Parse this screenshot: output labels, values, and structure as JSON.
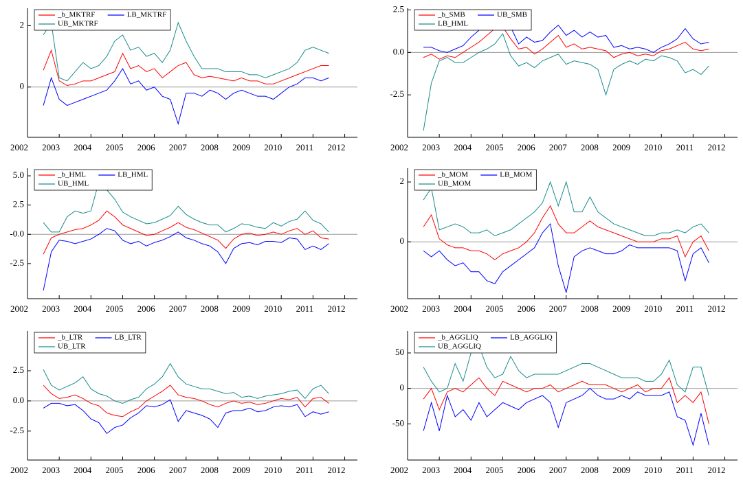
{
  "chart_data": [
    {
      "type": "line",
      "legend": "upper left",
      "xlim": [
        2002,
        2012.4
      ],
      "ylim": [
        -1.64,
        2.57
      ],
      "xticks": [
        2002,
        2003,
        2004,
        2005,
        2006,
        2007,
        2008,
        2009,
        2010,
        2011,
        2012
      ],
      "yticks": [
        0,
        2
      ],
      "x": [
        2002.5,
        2002.75,
        2003,
        2003.25,
        2003.5,
        2003.75,
        2004,
        2004.25,
        2004.5,
        2004.75,
        2005,
        2005.25,
        2005.5,
        2005.75,
        2006,
        2006.25,
        2006.5,
        2006.75,
        2007,
        2007.25,
        2007.5,
        2007.75,
        2008,
        2008.25,
        2008.5,
        2008.75,
        2009,
        2009.25,
        2009.5,
        2009.75,
        2010,
        2010.25,
        2010.5,
        2010.75,
        2011,
        2011.25,
        2011.5
      ],
      "series": [
        {
          "name": "_b_MKTRF",
          "color": "#ff0000",
          "values": [
            0.55,
            1.2,
            0.2,
            0.05,
            0.1,
            0.2,
            0.2,
            0.3,
            0.4,
            0.5,
            1.1,
            0.6,
            0.7,
            0.5,
            0.6,
            0.3,
            0.5,
            0.7,
            0.8,
            0.4,
            0.3,
            0.35,
            0.3,
            0.25,
            0.2,
            0.3,
            0.2,
            0.2,
            0.1,
            0.1,
            0.2,
            0.3,
            0.4,
            0.5,
            0.6,
            0.7,
            0.7
          ]
        },
        {
          "name": "LB_MKTRF",
          "color": "#0000ff",
          "values": [
            -0.6,
            0.3,
            -0.4,
            -0.6,
            -0.5,
            -0.4,
            -0.3,
            -0.2,
            -0.1,
            0.2,
            0.6,
            0.1,
            0.2,
            -0.1,
            0,
            -0.3,
            -0.4,
            -1.2,
            -0.2,
            -0.2,
            -0.3,
            -0.1,
            -0.2,
            -0.4,
            -0.2,
            -0.1,
            -0.2,
            -0.3,
            -0.3,
            -0.4,
            -0.2,
            0,
            0.1,
            0.3,
            0.3,
            0.2,
            0.3
          ]
        },
        {
          "name": "UB_MKTRF",
          "color": "#1a8c8c",
          "values": [
            1.7,
            2.1,
            0.3,
            0.2,
            0.5,
            0.8,
            0.6,
            0.7,
            1.0,
            1.5,
            1.7,
            1.2,
            1.3,
            1.0,
            1.1,
            0.8,
            1.2,
            2.1,
            1.5,
            1.0,
            0.6,
            0.6,
            0.6,
            0.5,
            0.5,
            0.5,
            0.4,
            0.4,
            0.3,
            0.4,
            0.5,
            0.6,
            0.8,
            1.2,
            1.3,
            1.2,
            1.1
          ]
        }
      ]
    },
    {
      "type": "line",
      "legend": "upper left",
      "xlim": [
        2002,
        2012.4
      ],
      "ylim": [
        -5,
        2.6
      ],
      "xticks": [
        2002,
        2003,
        2004,
        2005,
        2006,
        2007,
        2008,
        2009,
        2010,
        2011,
        2012
      ],
      "yticks": [
        -2.5,
        {
          "value": 0,
          "label": "0.0"
        },
        2.5
      ],
      "x": [
        2002.5,
        2002.75,
        2003,
        2003.25,
        2003.5,
        2003.75,
        2004,
        2004.25,
        2004.5,
        2004.75,
        2005,
        2005.25,
        2005.5,
        2005.75,
        2006,
        2006.25,
        2006.5,
        2006.75,
        2007,
        2007.25,
        2007.5,
        2007.75,
        2008,
        2008.25,
        2008.5,
        2008.75,
        2009,
        2009.25,
        2009.5,
        2009.75,
        2010,
        2010.25,
        2010.5,
        2010.75,
        2011,
        2011.25,
        2011.5
      ],
      "series": [
        {
          "name": "_b_SMB",
          "color": "#ff0000",
          "values": [
            -0.3,
            -0.1,
            -0.4,
            -0.2,
            -0.3,
            0,
            0.3,
            0.6,
            1.0,
            1.4,
            1.5,
            0.8,
            0.2,
            0.3,
            -0.1,
            0.2,
            0.6,
            1.0,
            0.3,
            0.5,
            0.2,
            0.3,
            0.2,
            0.1,
            -0.3,
            -0.1,
            0,
            -0.2,
            -0.1,
            -0.2,
            0.1,
            0.2,
            0.4,
            0.6,
            0.2,
            0.1,
            0.2
          ]
        },
        {
          "name": "UB_SMB",
          "color": "#0000ff",
          "values": [
            0.3,
            0.3,
            0.1,
            0,
            0.2,
            0.4,
            0.9,
            1.3,
            2.0,
            2.0,
            1.8,
            1.5,
            0.5,
            0.9,
            0.6,
            0.7,
            1.2,
            1.6,
            1.0,
            1.3,
            0.9,
            1.2,
            0.9,
            1.0,
            0.3,
            0.4,
            0.2,
            0.3,
            0.2,
            0,
            0.3,
            0.5,
            0.8,
            1.4,
            0.8,
            0.5,
            0.6
          ]
        },
        {
          "name": "LB_HML",
          "color": "#1a8c8c",
          "values": [
            -4.6,
            -1.8,
            -0.5,
            -0.3,
            -0.6,
            -0.6,
            -0.3,
            0,
            0.2,
            0.5,
            1.1,
            -0.2,
            -0.8,
            -0.6,
            -0.9,
            -0.5,
            -0.3,
            -0.1,
            -0.7,
            -0.5,
            -0.6,
            -0.7,
            -1.0,
            -2.5,
            -1.0,
            -0.7,
            -0.5,
            -0.7,
            -0.4,
            -0.5,
            -0.2,
            -0.3,
            -0.5,
            -1.2,
            -1.0,
            -1.3,
            -0.8
          ]
        }
      ]
    },
    {
      "type": "line",
      "legend": "upper left",
      "xlim": [
        2002,
        2012.4
      ],
      "ylim": [
        -5.5,
        5.65
      ],
      "xticks": [
        2002,
        2003,
        2004,
        2005,
        2006,
        2007,
        2008,
        2009,
        2010,
        2011,
        2012
      ],
      "yticks": [
        -2.5,
        {
          "value": 0,
          "label": "-0.0"
        },
        2.5,
        {
          "value": 5,
          "label": "5.0"
        }
      ],
      "x": [
        2002.5,
        2002.75,
        2003,
        2003.25,
        2003.5,
        2003.75,
        2004,
        2004.25,
        2004.5,
        2004.75,
        2005,
        2005.25,
        2005.5,
        2005.75,
        2006,
        2006.25,
        2006.5,
        2006.75,
        2007,
        2007.25,
        2007.5,
        2007.75,
        2008,
        2008.25,
        2008.5,
        2008.75,
        2009,
        2009.25,
        2009.5,
        2009.75,
        2010,
        2010.25,
        2010.5,
        2010.75,
        2011,
        2011.25,
        2011.5
      ],
      "series": [
        {
          "name": "_b_HML",
          "color": "#ff0000",
          "values": [
            -1.7,
            -0.3,
            0,
            0.2,
            0.4,
            0.5,
            0.8,
            1.2,
            2.0,
            1.5,
            0.8,
            0.5,
            0.2,
            -0.1,
            0,
            0.3,
            0.6,
            1.0,
            0.6,
            0.4,
            0.1,
            -0.2,
            -0.5,
            -1.2,
            -0.4,
            0,
            0.1,
            -0.1,
            0,
            0.2,
            0,
            0.3,
            0.5,
            0,
            0.3,
            -0.3,
            -0.4
          ]
        },
        {
          "name": "LB_HML",
          "color": "#0000ff",
          "values": [
            -4.8,
            -1.5,
            -0.5,
            -0.6,
            -0.8,
            -0.6,
            -0.4,
            0,
            0.5,
            0.3,
            -0.5,
            -0.8,
            -0.6,
            -1.0,
            -0.7,
            -0.5,
            -0.2,
            0.2,
            -0.3,
            -0.5,
            -0.8,
            -1.0,
            -1.5,
            -2.5,
            -1.2,
            -0.8,
            -0.7,
            -0.9,
            -0.6,
            -0.6,
            -0.7,
            -0.3,
            -0.4,
            -1.3,
            -1.0,
            -1.3,
            -0.8
          ]
        },
        {
          "name": "UB_HML",
          "color": "#1a8c8c",
          "values": [
            1.0,
            0.2,
            0.2,
            1.5,
            2.0,
            1.8,
            2.0,
            4.5,
            3.8,
            3.0,
            1.9,
            1.5,
            1.2,
            0.9,
            1.0,
            1.3,
            1.6,
            2.4,
            1.7,
            1.3,
            1.0,
            0.8,
            0.8,
            0.2,
            0.5,
            0.9,
            0.8,
            0.6,
            0.5,
            1.0,
            0.7,
            1.1,
            1.3,
            2.0,
            1.2,
            0.9,
            0.2
          ]
        }
      ]
    },
    {
      "type": "line",
      "legend": "upper left",
      "xlim": [
        2002,
        2012.4
      ],
      "ylim": [
        -1.9,
        2.46
      ],
      "xticks": [
        2002,
        2003,
        2004,
        2005,
        2006,
        2007,
        2008,
        2009,
        2010,
        2011,
        2012
      ],
      "yticks": [
        0,
        2
      ],
      "x": [
        2002.5,
        2002.75,
        2003,
        2003.25,
        2003.5,
        2003.75,
        2004,
        2004.25,
        2004.5,
        2004.75,
        2005,
        2005.25,
        2005.5,
        2005.75,
        2006,
        2006.25,
        2006.5,
        2006.75,
        2007,
        2007.25,
        2007.5,
        2007.75,
        2008,
        2008.25,
        2008.5,
        2008.75,
        2009,
        2009.25,
        2009.5,
        2009.75,
        2010,
        2010.25,
        2010.5,
        2010.75,
        2011,
        2011.25,
        2011.5
      ],
      "series": [
        {
          "name": "_b_MOM",
          "color": "#ff0000",
          "values": [
            0.5,
            0.9,
            0.1,
            -0.1,
            -0.2,
            -0.2,
            -0.3,
            -0.3,
            -0.4,
            -0.6,
            -0.4,
            -0.3,
            -0.2,
            0,
            0.3,
            0.8,
            1.2,
            0.6,
            0.3,
            0.3,
            0.5,
            0.7,
            0.5,
            0.4,
            0.3,
            0.2,
            0.1,
            0,
            0,
            0,
            0.1,
            0.1,
            0.2,
            -0.5,
            0,
            0.2,
            -0.3
          ]
        },
        {
          "name": "LB_MOM",
          "color": "#0000ff",
          "values": [
            -0.3,
            -0.5,
            -0.3,
            -0.6,
            -0.8,
            -0.7,
            -1.0,
            -1.0,
            -1.3,
            -1.4,
            -1.0,
            -0.8,
            -0.6,
            -0.4,
            -0.2,
            0.3,
            0.6,
            -0.8,
            -1.7,
            -0.5,
            -0.3,
            -0.2,
            -0.3,
            -0.4,
            -0.4,
            -0.3,
            -0.1,
            -0.2,
            -0.2,
            -0.2,
            -0.2,
            -0.2,
            -0.3,
            -1.3,
            -0.4,
            -0.2,
            -0.7
          ]
        },
        {
          "name": "UB_MOM",
          "color": "#1a8c8c",
          "values": [
            1.4,
            1.8,
            0.4,
            0.5,
            0.6,
            0.5,
            0.3,
            0.3,
            0.4,
            0.2,
            0.3,
            0.4,
            0.6,
            0.8,
            1.0,
            1.3,
            2.0,
            1.2,
            2.0,
            1.0,
            1.0,
            1.5,
            1.0,
            0.8,
            0.6,
            0.5,
            0.4,
            0.3,
            0.2,
            0.2,
            0.3,
            0.3,
            0.4,
            0.3,
            0.5,
            0.6,
            0.3
          ]
        }
      ]
    },
    {
      "type": "line",
      "legend": "upper left",
      "xlim": [
        2002,
        2012.4
      ],
      "ylim": [
        -4.9,
        5.8
      ],
      "xticks": [
        2002,
        2003,
        2004,
        2005,
        2006,
        2007,
        2008,
        2009,
        2010,
        2011,
        2012
      ],
      "yticks": [
        -2.5,
        {
          "value": 0,
          "label": "0.0"
        },
        2.5
      ],
      "x": [
        2002.5,
        2002.75,
        2003,
        2003.25,
        2003.5,
        2003.75,
        2004,
        2004.25,
        2004.5,
        2004.75,
        2005,
        2005.25,
        2005.5,
        2005.75,
        2006,
        2006.25,
        2006.5,
        2006.75,
        2007,
        2007.25,
        2007.5,
        2007.75,
        2008,
        2008.25,
        2008.5,
        2008.75,
        2009,
        2009.25,
        2009.5,
        2009.75,
        2010,
        2010.25,
        2010.5,
        2010.75,
        2011,
        2011.25,
        2011.5
      ],
      "series": [
        {
          "name": "_b_LTR",
          "color": "#ff0000",
          "values": [
            1.3,
            0.6,
            0.2,
            0.3,
            0.5,
            0.2,
            -0.2,
            -0.4,
            -1.0,
            -1.2,
            -1.3,
            -0.9,
            -0.6,
            0,
            0.4,
            0.8,
            1.3,
            0.5,
            0.3,
            0.2,
            0,
            -0.3,
            -0.5,
            -0.2,
            0,
            -0.2,
            -0.1,
            -0.3,
            -0.2,
            0,
            0.2,
            0.1,
            0.3,
            -0.5,
            0.2,
            0.3,
            -0.2
          ]
        },
        {
          "name": "LB_LTR",
          "color": "#0000ff",
          "values": [
            -0.6,
            -0.2,
            -0.2,
            -0.4,
            -0.3,
            -0.8,
            -1.5,
            -1.8,
            -2.7,
            -2.2,
            -2.0,
            -1.4,
            -1.0,
            -0.4,
            -0.5,
            -0.3,
            0.1,
            -1.7,
            -0.8,
            -1.0,
            -1.2,
            -1.5,
            -2.2,
            -1.0,
            -0.8,
            -0.8,
            -0.6,
            -0.9,
            -0.8,
            -0.5,
            -0.4,
            -0.5,
            -0.3,
            -1.3,
            -0.9,
            -1.1,
            -0.9
          ]
        },
        {
          "name": "UB_LTR",
          "color": "#1a8c8c",
          "values": [
            2.6,
            1.3,
            0.9,
            1.2,
            1.5,
            2.0,
            1.0,
            0.6,
            0.4,
            0,
            -0.2,
            0.1,
            0.3,
            1.0,
            1.4,
            2.0,
            3.1,
            2.0,
            1.4,
            1.2,
            1.0,
            1.0,
            0.8,
            0.6,
            0.7,
            0.3,
            0.4,
            0.2,
            0.4,
            0.5,
            0.6,
            0.8,
            0.9,
            0.2,
            1.0,
            1.3,
            0.6
          ]
        }
      ]
    },
    {
      "type": "line",
      "legend": "upper left",
      "xlim": [
        2002,
        2012.4
      ],
      "ylim": [
        -101,
        81
      ],
      "xticks": [
        2002,
        2003,
        2004,
        2005,
        2006,
        2007,
        2008,
        2009,
        2010,
        2011,
        2012
      ],
      "yticks": [
        -50,
        0,
        50
      ],
      "x": [
        2002.5,
        2002.75,
        2003,
        2003.25,
        2003.5,
        2003.75,
        2004,
        2004.25,
        2004.5,
        2004.75,
        2005,
        2005.25,
        2005.5,
        2005.75,
        2006,
        2006.25,
        2006.5,
        2006.75,
        2007,
        2007.25,
        2007.5,
        2007.75,
        2008,
        2008.25,
        2008.5,
        2008.75,
        2009,
        2009.25,
        2009.5,
        2009.75,
        2010,
        2010.25,
        2010.5,
        2010.75,
        2011,
        2011.25,
        2011.5
      ],
      "series": [
        {
          "name": "_b_AGGLIQ",
          "color": "#ff0000",
          "values": [
            -15,
            0,
            -30,
            -5,
            0,
            -5,
            5,
            15,
            0,
            -10,
            10,
            5,
            0,
            -5,
            0,
            0,
            5,
            -5,
            0,
            5,
            10,
            5,
            5,
            5,
            0,
            -5,
            0,
            5,
            -5,
            0,
            0,
            15,
            -20,
            -10,
            -20,
            -5,
            -50
          ]
        },
        {
          "name": "LB_AGGLIQ",
          "color": "#0000ff",
          "values": [
            -60,
            -20,
            -60,
            -10,
            -40,
            -30,
            -45,
            -20,
            -40,
            -30,
            -20,
            -25,
            -30,
            -20,
            -15,
            -10,
            -20,
            -55,
            -20,
            -15,
            -10,
            0,
            -10,
            -15,
            -15,
            -10,
            -15,
            -5,
            -10,
            -10,
            -10,
            -5,
            -40,
            -45,
            -80,
            -35,
            -80
          ]
        },
        {
          "name": "UB_AGGLIQ",
          "color": "#1a8c8c",
          "values": [
            30,
            10,
            -5,
            0,
            35,
            10,
            50,
            60,
            30,
            15,
            20,
            45,
            25,
            15,
            20,
            20,
            20,
            20,
            25,
            30,
            35,
            35,
            30,
            25,
            20,
            15,
            15,
            15,
            10,
            10,
            20,
            40,
            5,
            -5,
            30,
            30,
            -10
          ]
        }
      ]
    }
  ]
}
